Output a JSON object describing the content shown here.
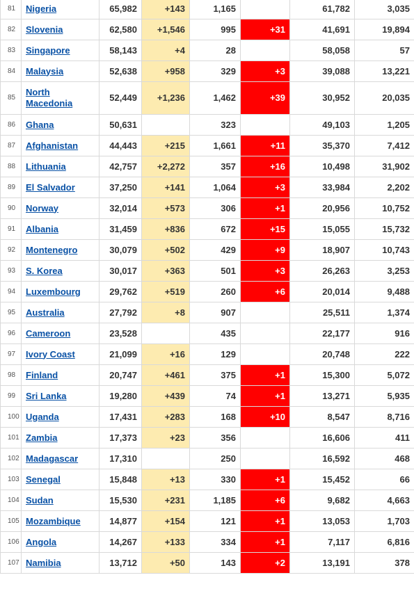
{
  "table": {
    "rows": [
      {
        "num": "81",
        "country": "Nigeria",
        "total_cases": "65,982",
        "new_cases": "+143",
        "total_deaths": "1,165",
        "new_deaths": "",
        "recovered": "61,782",
        "active": "3,035"
      },
      {
        "num": "82",
        "country": "Slovenia",
        "total_cases": "62,580",
        "new_cases": "+1,546",
        "total_deaths": "995",
        "new_deaths": "+31",
        "recovered": "41,691",
        "active": "19,894"
      },
      {
        "num": "83",
        "country": "Singapore",
        "total_cases": "58,143",
        "new_cases": "+4",
        "total_deaths": "28",
        "new_deaths": "",
        "recovered": "58,058",
        "active": "57"
      },
      {
        "num": "84",
        "country": "Malaysia",
        "total_cases": "52,638",
        "new_cases": "+958",
        "total_deaths": "329",
        "new_deaths": "+3",
        "recovered": "39,088",
        "active": "13,221"
      },
      {
        "num": "85",
        "country": "North Macedonia",
        "total_cases": "52,449",
        "new_cases": "+1,236",
        "total_deaths": "1,462",
        "new_deaths": "+39",
        "recovered": "30,952",
        "active": "20,035"
      },
      {
        "num": "86",
        "country": "Ghana",
        "total_cases": "50,631",
        "new_cases": "",
        "total_deaths": "323",
        "new_deaths": "",
        "recovered": "49,103",
        "active": "1,205"
      },
      {
        "num": "87",
        "country": "Afghanistan",
        "total_cases": "44,443",
        "new_cases": "+215",
        "total_deaths": "1,661",
        "new_deaths": "+11",
        "recovered": "35,370",
        "active": "7,412"
      },
      {
        "num": "88",
        "country": "Lithuania",
        "total_cases": "42,757",
        "new_cases": "+2,272",
        "total_deaths": "357",
        "new_deaths": "+16",
        "recovered": "10,498",
        "active": "31,902"
      },
      {
        "num": "89",
        "country": "El Salvador",
        "total_cases": "37,250",
        "new_cases": "+141",
        "total_deaths": "1,064",
        "new_deaths": "+3",
        "recovered": "33,984",
        "active": "2,202"
      },
      {
        "num": "90",
        "country": "Norway",
        "total_cases": "32,014",
        "new_cases": "+573",
        "total_deaths": "306",
        "new_deaths": "+1",
        "recovered": "20,956",
        "active": "10,752"
      },
      {
        "num": "91",
        "country": "Albania",
        "total_cases": "31,459",
        "new_cases": "+836",
        "total_deaths": "672",
        "new_deaths": "+15",
        "recovered": "15,055",
        "active": "15,732"
      },
      {
        "num": "92",
        "country": "Montenegro",
        "total_cases": "30,079",
        "new_cases": "+502",
        "total_deaths": "429",
        "new_deaths": "+9",
        "recovered": "18,907",
        "active": "10,743"
      },
      {
        "num": "93",
        "country": "S. Korea",
        "total_cases": "30,017",
        "new_cases": "+363",
        "total_deaths": "501",
        "new_deaths": "+3",
        "recovered": "26,263",
        "active": "3,253"
      },
      {
        "num": "94",
        "country": "Luxembourg",
        "total_cases": "29,762",
        "new_cases": "+519",
        "total_deaths": "260",
        "new_deaths": "+6",
        "recovered": "20,014",
        "active": "9,488"
      },
      {
        "num": "95",
        "country": "Australia",
        "total_cases": "27,792",
        "new_cases": "+8",
        "total_deaths": "907",
        "new_deaths": "",
        "recovered": "25,511",
        "active": "1,374"
      },
      {
        "num": "96",
        "country": "Cameroon",
        "total_cases": "23,528",
        "new_cases": "",
        "total_deaths": "435",
        "new_deaths": "",
        "recovered": "22,177",
        "active": "916"
      },
      {
        "num": "97",
        "country": "Ivory Coast",
        "total_cases": "21,099",
        "new_cases": "+16",
        "total_deaths": "129",
        "new_deaths": "",
        "recovered": "20,748",
        "active": "222"
      },
      {
        "num": "98",
        "country": "Finland",
        "total_cases": "20,747",
        "new_cases": "+461",
        "total_deaths": "375",
        "new_deaths": "+1",
        "recovered": "15,300",
        "active": "5,072"
      },
      {
        "num": "99",
        "country": "Sri Lanka",
        "total_cases": "19,280",
        "new_cases": "+439",
        "total_deaths": "74",
        "new_deaths": "+1",
        "recovered": "13,271",
        "active": "5,935"
      },
      {
        "num": "100",
        "country": "Uganda",
        "total_cases": "17,431",
        "new_cases": "+283",
        "total_deaths": "168",
        "new_deaths": "+10",
        "recovered": "8,547",
        "active": "8,716"
      },
      {
        "num": "101",
        "country": "Zambia",
        "total_cases": "17,373",
        "new_cases": "+23",
        "total_deaths": "356",
        "new_deaths": "",
        "recovered": "16,606",
        "active": "411"
      },
      {
        "num": "102",
        "country": "Madagascar",
        "total_cases": "17,310",
        "new_cases": "",
        "total_deaths": "250",
        "new_deaths": "",
        "recovered": "16,592",
        "active": "468"
      },
      {
        "num": "103",
        "country": "Senegal",
        "total_cases": "15,848",
        "new_cases": "+13",
        "total_deaths": "330",
        "new_deaths": "+1",
        "recovered": "15,452",
        "active": "66"
      },
      {
        "num": "104",
        "country": "Sudan",
        "total_cases": "15,530",
        "new_cases": "+231",
        "total_deaths": "1,185",
        "new_deaths": "+6",
        "recovered": "9,682",
        "active": "4,663"
      },
      {
        "num": "105",
        "country": "Mozambique",
        "total_cases": "14,877",
        "new_cases": "+154",
        "total_deaths": "121",
        "new_deaths": "+1",
        "recovered": "13,053",
        "active": "1,703"
      },
      {
        "num": "106",
        "country": "Angola",
        "total_cases": "14,267",
        "new_cases": "+133",
        "total_deaths": "334",
        "new_deaths": "+1",
        "recovered": "7,117",
        "active": "6,816"
      },
      {
        "num": "107",
        "country": "Namibia",
        "total_cases": "13,712",
        "new_cases": "+50",
        "total_deaths": "143",
        "new_deaths": "+2",
        "recovered": "13,191",
        "active": "378"
      }
    ]
  },
  "colors": {
    "new_cases_highlight": "#fdebb0",
    "new_deaths_highlight": "#ff0000",
    "link": "#0a52a6"
  }
}
